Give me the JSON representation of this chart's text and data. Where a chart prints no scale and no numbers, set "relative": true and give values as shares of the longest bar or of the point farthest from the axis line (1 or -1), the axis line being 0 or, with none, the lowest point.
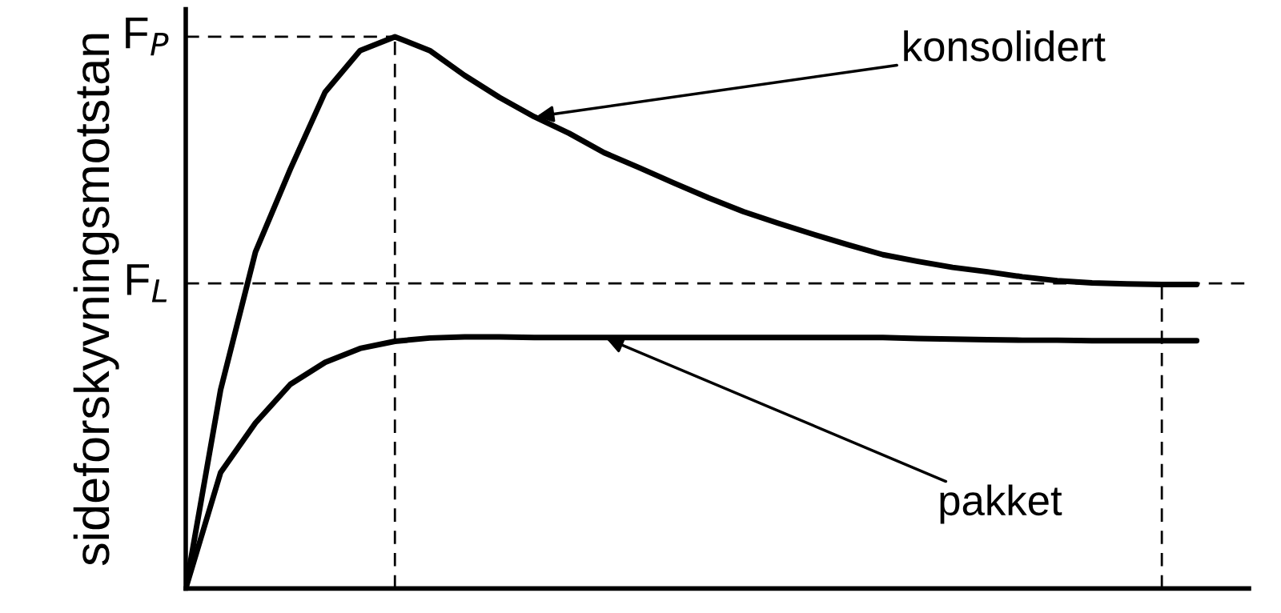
{
  "chart_data": {
    "type": "line",
    "relative": true,
    "ylabel": "sideforskyvningsmotstan",
    "marker": "none",
    "line_style": "solid",
    "grid": false,
    "categories": [
      null,
      null,
      null,
      null,
      null,
      null,
      null,
      null,
      null,
      null,
      null,
      null,
      null,
      null,
      null,
      null,
      null,
      null,
      null,
      null,
      null,
      null,
      null,
      null,
      null,
      null,
      null,
      null,
      null,
      null,
      null
    ],
    "series": [
      {
        "color": "#000000",
        "values": [
          0,
          0.36,
          0.61,
          0.76,
          0.9,
          0.975,
          1.0,
          0.975,
          0.93,
          0.89,
          0.855,
          0.825,
          0.79,
          0.763,
          0.735,
          0.708,
          0.683,
          0.662,
          0.642,
          0.623,
          0.605,
          0.593,
          0.582,
          0.574,
          0.565,
          0.558,
          0.554,
          0.552,
          0.551,
          0.551,
          null
        ]
      },
      {
        "color": "#000000",
        "values": [
          0,
          0.21,
          0.3,
          0.37,
          0.41,
          0.435,
          0.448,
          0.454,
          0.456,
          0.456,
          0.455,
          0.455,
          0.455,
          0.455,
          0.455,
          0.455,
          0.455,
          0.455,
          0.455,
          0.455,
          0.455,
          0.453,
          0.452,
          0.451,
          0.45,
          0.45,
          0.449,
          0.449,
          0.449,
          0.449,
          null
        ]
      }
    ],
    "ref_lines": [
      {
        "axis": "y",
        "value": 1.0,
        "label": "F$_{P}$",
        "line_style": "dashed",
        "color": "#000000"
      },
      {
        "axis": "y",
        "value": 0.553,
        "label": "F$_{L}$",
        "line_style": "dashed",
        "color": "#000000"
      }
    ],
    "annotations": [
      "konsolidert",
      "pakket"
    ]
  }
}
